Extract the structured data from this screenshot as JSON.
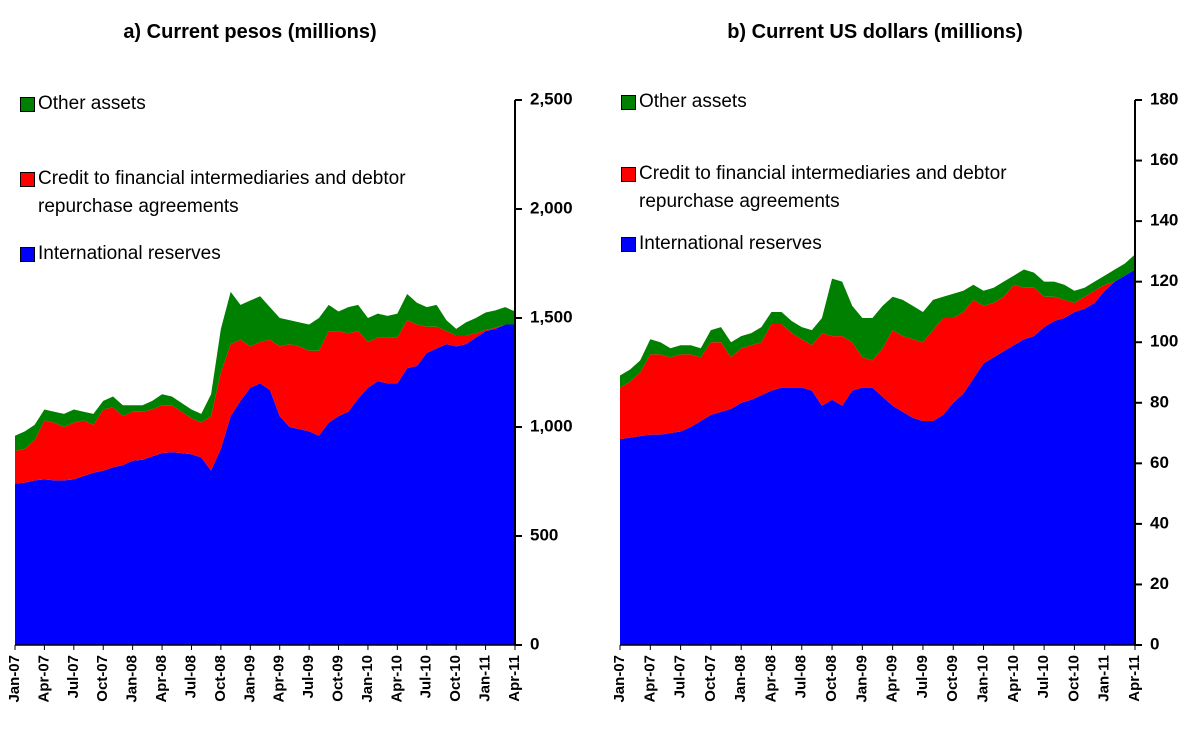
{
  "chart_data": [
    {
      "type": "area",
      "stacked": true,
      "title": "a) Current pesos (millions)",
      "categories": [
        "Jan-07",
        null,
        null,
        "Apr-07",
        null,
        null,
        "Jul-07",
        null,
        null,
        "Oct-07",
        null,
        null,
        "Jan-08",
        null,
        null,
        "Apr-08",
        null,
        null,
        "Jul-08",
        null,
        null,
        "Oct-08",
        null,
        null,
        "Jan-09",
        null,
        null,
        "Apr-09",
        null,
        null,
        "Jul-09",
        null,
        null,
        "Oct-09",
        null,
        null,
        "Jan-10",
        null,
        null,
        "Apr-10",
        null,
        null,
        "Jul-10",
        null,
        null,
        "Oct-10",
        null,
        null,
        "Jan-11",
        null,
        null,
        "Apr-11"
      ],
      "series": [
        {
          "name": "International reserves",
          "color": "#0000ff",
          "values": [
            740,
            745,
            755,
            760,
            755,
            755,
            760,
            775,
            790,
            800,
            815,
            825,
            845,
            850,
            865,
            880,
            885,
            880,
            875,
            860,
            800,
            900,
            1050,
            1120,
            1180,
            1200,
            1170,
            1050,
            1000,
            990,
            980,
            960,
            1020,
            1050,
            1070,
            1130,
            1180,
            1210,
            1200,
            1200,
            1270,
            1280,
            1340,
            1360,
            1380,
            1370,
            1380,
            1410,
            1440,
            1450,
            1470,
            1470
          ]
        },
        {
          "name": "Credit to financial intermediaries and debtor repurchase agreements",
          "color": "#ff0000",
          "values": [
            150,
            155,
            185,
            270,
            265,
            245,
            260,
            255,
            220,
            280,
            275,
            225,
            225,
            220,
            215,
            220,
            215,
            190,
            165,
            160,
            250,
            350,
            330,
            280,
            190,
            190,
            230,
            320,
            380,
            380,
            370,
            390,
            420,
            390,
            360,
            310,
            210,
            200,
            210,
            210,
            220,
            190,
            120,
            100,
            60,
            50,
            40,
            20,
            5,
            5,
            0,
            0
          ]
        },
        {
          "name": "Other assets",
          "color": "#008000",
          "values": [
            70,
            80,
            70,
            50,
            50,
            60,
            60,
            40,
            50,
            40,
            50,
            50,
            30,
            30,
            40,
            50,
            40,
            40,
            40,
            40,
            100,
            200,
            240,
            160,
            210,
            210,
            150,
            130,
            110,
            110,
            120,
            150,
            120,
            90,
            120,
            120,
            110,
            110,
            100,
            110,
            120,
            100,
            90,
            100,
            50,
            30,
            60,
            70,
            80,
            80,
            80,
            60
          ]
        }
      ],
      "ylim": [
        0,
        2500
      ],
      "yticks": [
        {
          "value": 0,
          "label": "0"
        },
        {
          "value": 500,
          "label": "500"
        },
        {
          "value": 1000,
          "label": "1,000"
        },
        {
          "value": 1500,
          "label": "1,500"
        },
        {
          "value": 2000,
          "label": "2,000"
        },
        {
          "value": 2500,
          "label": "2,500"
        }
      ],
      "y_axis_side": "right",
      "legend": "upper left"
    },
    {
      "type": "area",
      "stacked": true,
      "title": "b) Current US dollars (millions)",
      "categories": [
        "Jan-07",
        null,
        null,
        "Apr-07",
        null,
        null,
        "Jul-07",
        null,
        null,
        "Oct-07",
        null,
        null,
        "Jan-08",
        null,
        null,
        "Apr-08",
        null,
        null,
        "Jul-08",
        null,
        null,
        "Oct-08",
        null,
        null,
        "Jan-09",
        null,
        null,
        "Apr-09",
        null,
        null,
        "Jul-09",
        null,
        null,
        "Oct-09",
        null,
        null,
        "Jan-10",
        null,
        null,
        "Apr-10",
        null,
        null,
        "Jul-10",
        null,
        null,
        "Oct-10",
        null,
        null,
        "Jan-11",
        null,
        null,
        "Apr-11"
      ],
      "series": [
        {
          "name": "International reserves",
          "color": "#0000ff",
          "values": [
            68,
            68.5,
            69,
            69.5,
            69.5,
            70,
            70.5,
            72,
            74,
            76,
            77,
            78,
            80,
            81,
            82.5,
            84,
            85,
            85,
            85,
            84,
            79,
            81,
            79,
            84,
            85,
            85,
            82,
            79,
            77,
            75,
            74,
            74,
            76,
            80,
            83,
            88,
            93,
            95,
            97,
            99,
            101,
            102,
            105,
            107,
            108,
            110,
            111,
            113,
            117,
            120,
            122,
            124
          ]
        },
        {
          "name": "Credit to financial intermediaries and debtor repurchase agreements",
          "color": "#ff0000",
          "values": [
            17,
            18.5,
            21,
            26.5,
            26.5,
            25,
            25.5,
            24,
            21,
            24,
            23,
            17,
            18,
            18,
            17.5,
            22,
            21,
            18,
            16,
            15,
            24,
            21,
            23,
            16,
            10,
            9,
            16,
            25,
            25,
            26,
            26,
            30,
            32,
            28,
            27,
            26,
            19,
            18,
            18,
            20,
            17,
            16,
            10,
            8,
            6,
            3,
            4,
            4,
            2,
            0,
            0,
            0
          ]
        },
        {
          "name": "Other assets",
          "color": "#008000",
          "values": [
            4,
            4,
            4,
            5,
            4,
            3,
            3,
            3,
            3,
            4,
            5,
            5,
            4,
            4,
            5,
            4,
            4,
            4,
            4,
            5,
            5,
            19,
            18,
            12,
            13,
            14,
            14,
            11,
            12,
            11,
            10,
            10,
            7,
            8,
            7,
            5,
            5,
            5,
            5,
            3,
            6,
            5,
            5,
            5,
            5,
            4,
            3,
            3,
            3,
            4,
            4,
            5
          ]
        }
      ],
      "ylim": [
        0,
        180
      ],
      "yticks": [
        0,
        20,
        40,
        60,
        80,
        100,
        120,
        140,
        160,
        180
      ],
      "y_axis_side": "right",
      "legend": "upper left"
    }
  ]
}
